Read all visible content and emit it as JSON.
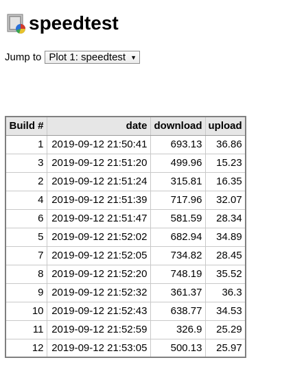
{
  "header": {
    "title": "speedtest",
    "logo_icon": "speedtest-logo-icon"
  },
  "jump": {
    "label": "Jump to",
    "selected": "Plot 1: speedtest"
  },
  "table": {
    "columns": [
      "Build #",
      "date",
      "download",
      "upload"
    ],
    "rows": [
      [
        "1",
        "2019-09-12 21:50:41",
        "693.13",
        "36.86"
      ],
      [
        "3",
        "2019-09-12 21:51:20",
        "499.96",
        "15.23"
      ],
      [
        "2",
        "2019-09-12 21:51:24",
        "315.81",
        "16.35"
      ],
      [
        "4",
        "2019-09-12 21:51:39",
        "717.96",
        "32.07"
      ],
      [
        "6",
        "2019-09-12 21:51:47",
        "581.59",
        "28.34"
      ],
      [
        "5",
        "2019-09-12 21:52:02",
        "682.94",
        "34.89"
      ],
      [
        "7",
        "2019-09-12 21:52:05",
        "734.82",
        "28.45"
      ],
      [
        "8",
        "2019-09-12 21:52:20",
        "748.19",
        "35.52"
      ],
      [
        "9",
        "2019-09-12 21:52:32",
        "361.37",
        "36.3"
      ],
      [
        "10",
        "2019-09-12 21:52:43",
        "638.77",
        "34.53"
      ],
      [
        "11",
        "2019-09-12 21:52:59",
        "326.9",
        "25.29"
      ],
      [
        "12",
        "2019-09-12 21:53:05",
        "500.13",
        "25.97"
      ]
    ]
  }
}
